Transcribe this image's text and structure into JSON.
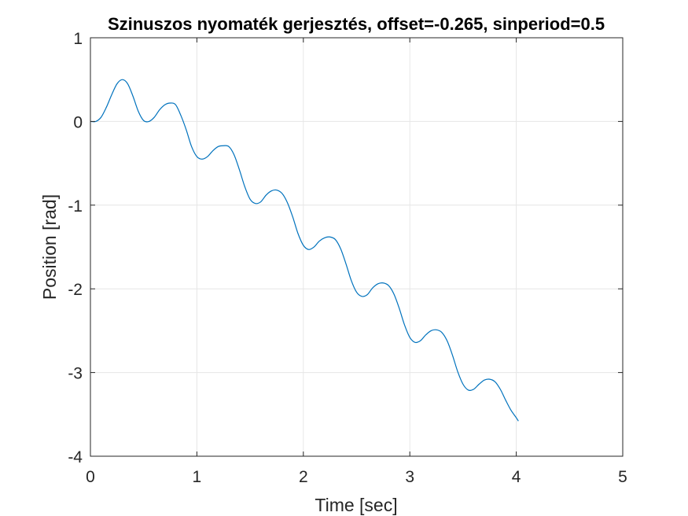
{
  "chart_data": {
    "type": "line",
    "title": "Szinuszos nyomaték gerjesztés, offset=-0.265, sinperiod=0.5",
    "xlabel": "Time [sec]",
    "ylabel": "Position [rad]",
    "xlim": [
      0,
      5
    ],
    "ylim": [
      -4,
      1
    ],
    "xticks": [
      0,
      1,
      2,
      3,
      4,
      5
    ],
    "yticks": [
      -4,
      -3,
      -2,
      -1,
      0,
      1
    ],
    "xtick_labels": [
      "0",
      "1",
      "2",
      "3",
      "4",
      "5"
    ],
    "ytick_labels": [
      "-4",
      "-3",
      "-2",
      "-1",
      "0",
      "1"
    ],
    "grid": true,
    "series": [
      {
        "color": "#0072BD",
        "x": [
          0,
          0.05,
          0.1,
          0.15,
          0.2,
          0.25,
          0.3,
          0.35,
          0.4,
          0.45,
          0.5,
          0.55,
          0.6,
          0.65,
          0.7,
          0.75,
          0.8,
          0.85,
          0.9,
          0.95,
          1.0,
          1.05,
          1.1,
          1.15,
          1.2,
          1.25,
          1.3,
          1.35,
          1.4,
          1.45,
          1.5,
          1.55,
          1.6,
          1.65,
          1.7,
          1.75,
          1.8,
          1.85,
          1.9,
          1.95,
          2.0,
          2.05,
          2.1,
          2.15,
          2.2,
          2.25,
          2.3,
          2.35,
          2.4,
          2.45,
          2.5,
          2.55,
          2.6,
          2.65,
          2.7,
          2.75,
          2.8,
          2.85,
          2.9,
          2.95,
          3.0,
          3.05,
          3.1,
          3.15,
          3.2,
          3.25,
          3.3,
          3.35,
          3.4,
          3.45,
          3.5,
          3.55,
          3.6,
          3.65,
          3.7,
          3.75,
          3.8,
          3.85,
          3.9,
          3.95,
          4.0,
          4.02
        ],
        "y": [
          0.0,
          0.0,
          0.05,
          0.17,
          0.32,
          0.45,
          0.5,
          0.45,
          0.3,
          0.12,
          0.01,
          0.0,
          0.05,
          0.14,
          0.2,
          0.22,
          0.2,
          0.07,
          -0.1,
          -0.3,
          -0.42,
          -0.45,
          -0.42,
          -0.35,
          -0.3,
          -0.29,
          -0.3,
          -0.4,
          -0.58,
          -0.78,
          -0.93,
          -0.98,
          -0.96,
          -0.88,
          -0.83,
          -0.82,
          -0.86,
          -0.97,
          -1.14,
          -1.34,
          -1.48,
          -1.53,
          -1.5,
          -1.43,
          -1.39,
          -1.38,
          -1.41,
          -1.52,
          -1.7,
          -1.9,
          -2.04,
          -2.09,
          -2.07,
          -1.99,
          -1.94,
          -1.93,
          -1.96,
          -2.06,
          -2.23,
          -2.43,
          -2.58,
          -2.64,
          -2.62,
          -2.55,
          -2.5,
          -2.49,
          -2.52,
          -2.62,
          -2.79,
          -2.99,
          -3.14,
          -3.21,
          -3.2,
          -3.14,
          -3.09,
          -3.08,
          -3.11,
          -3.2,
          -3.33,
          -3.45,
          -3.54,
          -3.58
        ]
      }
    ]
  }
}
